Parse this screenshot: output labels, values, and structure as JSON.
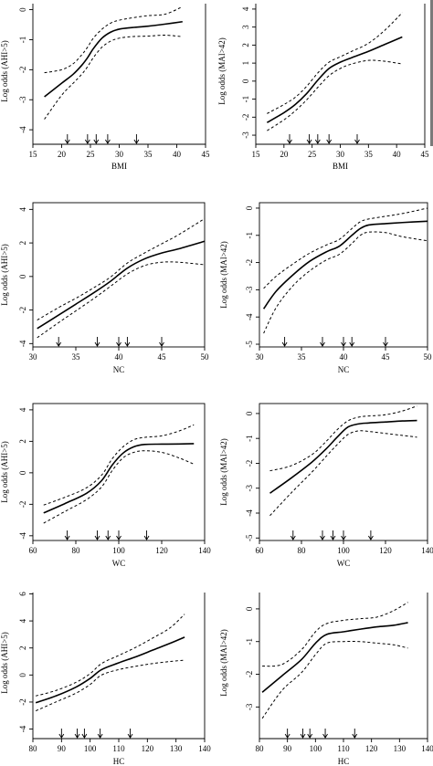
{
  "chart_data": [
    {
      "type": "line",
      "xlabel": "BMI",
      "ylabel": "Log odds (AHI>5)",
      "xlim": [
        15,
        45
      ],
      "ylim": [
        -4.3,
        0.2
      ],
      "xticks": [
        "15",
        "20",
        "25",
        "30",
        "35",
        "40",
        "45"
      ],
      "yticks": [
        "-4",
        "-3",
        "-2",
        "-1",
        "0"
      ],
      "frame": "open-top",
      "knots": [
        21,
        24.5,
        26,
        28,
        33
      ],
      "series": [
        {
          "role": "fit",
          "x": [
            17,
            20,
            22,
            23.5,
            24.5,
            25.5,
            27,
            28.5,
            30,
            32,
            35,
            38,
            41
          ],
          "y": [
            -2.9,
            -2.45,
            -2.15,
            -1.85,
            -1.6,
            -1.3,
            -0.95,
            -0.75,
            -0.65,
            -0.6,
            -0.55,
            -0.48,
            -0.4
          ]
        },
        {
          "role": "upper",
          "x": [
            17,
            20,
            22,
            23.5,
            24.5,
            25.5,
            27,
            28.5,
            30,
            32,
            35,
            38,
            41
          ],
          "y": [
            -2.1,
            -2.0,
            -1.8,
            -1.5,
            -1.25,
            -0.95,
            -0.65,
            -0.45,
            -0.35,
            -0.28,
            -0.2,
            -0.15,
            0.1
          ]
        },
        {
          "role": "lower",
          "x": [
            17,
            20,
            22,
            23.5,
            24.5,
            25.5,
            27,
            28.5,
            30,
            32,
            35,
            38,
            41
          ],
          "y": [
            -3.65,
            -2.85,
            -2.45,
            -2.15,
            -1.9,
            -1.6,
            -1.25,
            -1.05,
            -0.95,
            -0.9,
            -0.88,
            -0.85,
            -0.9
          ]
        }
      ]
    },
    {
      "type": "line",
      "xlabel": "BMI",
      "ylabel": "Log odds (MAI>42)",
      "xlim": [
        15,
        45
      ],
      "ylim": [
        -3.2,
        4.3
      ],
      "xticks": [
        "15",
        "20",
        "25",
        "30",
        "35",
        "40",
        "45"
      ],
      "yticks": [
        "-3",
        "-2",
        "-1",
        "0",
        "1",
        "2",
        "3",
        "4"
      ],
      "frame": "open-top",
      "knots": [
        21,
        24.5,
        26,
        28,
        33
      ],
      "series": [
        {
          "role": "fit",
          "x": [
            17,
            20,
            22,
            24,
            26,
            28,
            30,
            32,
            35,
            38,
            41
          ],
          "y": [
            -2.3,
            -1.75,
            -1.3,
            -0.7,
            0.05,
            0.7,
            1.05,
            1.3,
            1.65,
            2.05,
            2.45
          ]
        },
        {
          "role": "upper",
          "x": [
            17,
            20,
            22,
            24,
            26,
            28,
            30,
            32,
            35,
            38,
            41
          ],
          "y": [
            -1.8,
            -1.3,
            -0.9,
            -0.3,
            0.45,
            1.05,
            1.35,
            1.65,
            2.1,
            2.85,
            3.8
          ]
        },
        {
          "role": "lower",
          "x": [
            17,
            20,
            22,
            24,
            26,
            28,
            30,
            32,
            35,
            38,
            41
          ],
          "y": [
            -2.75,
            -2.15,
            -1.65,
            -1.05,
            -0.35,
            0.3,
            0.7,
            0.95,
            1.15,
            1.1,
            0.95
          ]
        }
      ]
    },
    {
      "type": "line",
      "xlabel": "NC",
      "ylabel": "Log odds (AHI>5)",
      "xlim": [
        30,
        50
      ],
      "ylim": [
        -4.2,
        4.4
      ],
      "xticks": [
        "30",
        "35",
        "40",
        "45",
        "50"
      ],
      "yticks": [
        "-4",
        "-2",
        "0",
        "2",
        "4"
      ],
      "frame": "box",
      "knots": [
        33,
        37.5,
        40,
        41,
        45
      ],
      "series": [
        {
          "role": "fit",
          "x": [
            30.5,
            33,
            35,
            37,
            39,
            41,
            43,
            45,
            47,
            50
          ],
          "y": [
            -3.1,
            -2.3,
            -1.65,
            -1.0,
            -0.3,
            0.5,
            1.05,
            1.4,
            1.65,
            2.1
          ]
        },
        {
          "role": "upper",
          "x": [
            30.5,
            33,
            35,
            37,
            39,
            41,
            43,
            45,
            47,
            50
          ],
          "y": [
            -2.6,
            -1.85,
            -1.3,
            -0.7,
            -0.05,
            0.8,
            1.4,
            1.95,
            2.5,
            3.45
          ]
        },
        {
          "role": "lower",
          "x": [
            30.5,
            33,
            35,
            37,
            39,
            41,
            43,
            45,
            47,
            50
          ],
          "y": [
            -3.65,
            -2.75,
            -2.05,
            -1.35,
            -0.6,
            0.15,
            0.65,
            0.85,
            0.85,
            0.7
          ]
        }
      ]
    },
    {
      "type": "line",
      "xlabel": "NC",
      "ylabel": "Log odds (MAI>42)",
      "xlim": [
        30,
        50
      ],
      "ylim": [
        -5.1,
        0.2
      ],
      "xticks": [
        "30",
        "35",
        "40",
        "45",
        "50"
      ],
      "yticks": [
        "-5",
        "-4",
        "-3",
        "-2",
        "-1",
        "0"
      ],
      "frame": "box",
      "knots": [
        33,
        37.5,
        40,
        41,
        45
      ],
      "series": [
        {
          "role": "fit",
          "x": [
            30.5,
            32,
            34,
            36,
            38,
            39.5,
            41,
            42,
            43,
            45,
            47,
            50
          ],
          "y": [
            -3.7,
            -3.05,
            -2.45,
            -1.95,
            -1.6,
            -1.4,
            -1.0,
            -0.75,
            -0.62,
            -0.57,
            -0.53,
            -0.48
          ]
        },
        {
          "role": "upper",
          "x": [
            30.5,
            32,
            34,
            36,
            38,
            39.5,
            41,
            42,
            43,
            45,
            47,
            50
          ],
          "y": [
            -2.95,
            -2.5,
            -2.05,
            -1.65,
            -1.35,
            -1.15,
            -0.75,
            -0.5,
            -0.4,
            -0.3,
            -0.2,
            0.0
          ]
        },
        {
          "role": "lower",
          "x": [
            30.5,
            32,
            34,
            36,
            38,
            39.5,
            41,
            42,
            43,
            45,
            47,
            50
          ],
          "y": [
            -4.6,
            -3.65,
            -2.85,
            -2.3,
            -1.9,
            -1.7,
            -1.3,
            -1.0,
            -0.88,
            -0.9,
            -1.05,
            -1.2
          ]
        }
      ]
    },
    {
      "type": "line",
      "xlabel": "WC",
      "ylabel": "Log odds (AHI>5)",
      "xlim": [
        60,
        140
      ],
      "ylim": [
        -4.3,
        4.4
      ],
      "xticks": [
        "60",
        "80",
        "100",
        "120",
        "140"
      ],
      "yticks": [
        "-4",
        "-2",
        "0",
        "2",
        "4"
      ],
      "frame": "box",
      "knots": [
        76,
        90,
        95,
        100,
        113
      ],
      "series": [
        {
          "role": "fit",
          "x": [
            65,
            75,
            85,
            92,
            97,
            102,
            107,
            112,
            120,
            128,
            135
          ],
          "y": [
            -2.55,
            -1.95,
            -1.3,
            -0.5,
            0.5,
            1.25,
            1.65,
            1.8,
            1.82,
            1.83,
            1.85
          ]
        },
        {
          "role": "upper",
          "x": [
            65,
            75,
            85,
            92,
            97,
            102,
            107,
            112,
            120,
            128,
            135
          ],
          "y": [
            -2.05,
            -1.55,
            -0.95,
            -0.15,
            0.9,
            1.65,
            2.1,
            2.25,
            2.35,
            2.65,
            3.05
          ]
        },
        {
          "role": "lower",
          "x": [
            65,
            75,
            85,
            92,
            97,
            102,
            107,
            112,
            120,
            128,
            135
          ],
          "y": [
            -3.2,
            -2.45,
            -1.7,
            -0.9,
            0.15,
            0.95,
            1.3,
            1.4,
            1.3,
            0.95,
            0.55
          ]
        }
      ]
    },
    {
      "type": "line",
      "xlabel": "WC",
      "ylabel": "Log odds (MAI>42)",
      "xlim": [
        60,
        140
      ],
      "ylim": [
        -5.1,
        0.4
      ],
      "xticks": [
        "60",
        "80",
        "100",
        "120",
        "140"
      ],
      "yticks": [
        "-5",
        "-4",
        "-3",
        "-2",
        "-1",
        "0"
      ],
      "frame": "box",
      "knots": [
        76,
        90,
        95,
        100,
        113
      ],
      "series": [
        {
          "role": "fit",
          "x": [
            65,
            75,
            85,
            92,
            97,
            102,
            107,
            112,
            120,
            128,
            135
          ],
          "y": [
            -3.2,
            -2.6,
            -1.95,
            -1.4,
            -0.95,
            -0.55,
            -0.42,
            -0.38,
            -0.34,
            -0.3,
            -0.28
          ]
        },
        {
          "role": "upper",
          "x": [
            65,
            75,
            85,
            92,
            97,
            102,
            107,
            112,
            120,
            128,
            135
          ],
          "y": [
            -2.3,
            -2.1,
            -1.65,
            -1.1,
            -0.65,
            -0.3,
            -0.15,
            -0.1,
            -0.05,
            0.1,
            0.3
          ]
        },
        {
          "role": "lower",
          "x": [
            65,
            75,
            85,
            92,
            97,
            102,
            107,
            112,
            120,
            128,
            135
          ],
          "y": [
            -4.1,
            -3.2,
            -2.35,
            -1.7,
            -1.25,
            -0.85,
            -0.7,
            -0.72,
            -0.8,
            -0.88,
            -0.95
          ]
        }
      ]
    },
    {
      "type": "line",
      "xlabel": "HC",
      "ylabel": "Log odds (AHI>5)",
      "xlim": [
        80,
        140
      ],
      "ylim": [
        -4.3,
        6.1
      ],
      "xticks": [
        "80",
        "90",
        "100",
        "110",
        "120",
        "130",
        "140"
      ],
      "yticks": [
        "-4",
        "-2",
        "0",
        "2",
        "4",
        "6"
      ],
      "frame": "open-top",
      "knots": [
        90,
        95.5,
        98,
        103.5,
        114
      ],
      "series": [
        {
          "role": "fit",
          "x": [
            81,
            88,
            95,
            100,
            104,
            110,
            116,
            122,
            128,
            133
          ],
          "y": [
            -2.05,
            -1.55,
            -0.9,
            -0.25,
            0.4,
            0.9,
            1.35,
            1.85,
            2.35,
            2.8
          ]
        },
        {
          "role": "upper",
          "x": [
            81,
            88,
            95,
            100,
            104,
            110,
            116,
            122,
            128,
            133
          ],
          "y": [
            -1.55,
            -1.15,
            -0.55,
            0.1,
            0.85,
            1.45,
            2.05,
            2.75,
            3.5,
            4.5
          ]
        },
        {
          "role": "lower",
          "x": [
            81,
            88,
            95,
            100,
            104,
            110,
            116,
            122,
            128,
            133
          ],
          "y": [
            -2.65,
            -2.0,
            -1.35,
            -0.7,
            0.0,
            0.4,
            0.65,
            0.85,
            1.0,
            1.1
          ]
        }
      ]
    },
    {
      "type": "line",
      "xlabel": "HC",
      "ylabel": "Log odds (MAI>42)",
      "xlim": [
        80,
        140
      ],
      "ylim": [
        -3.8,
        0.5
      ],
      "xticks": [
        "80",
        "90",
        "100",
        "110",
        "120",
        "130",
        "140"
      ],
      "yticks": [
        "-3",
        "-2",
        "-1",
        "0"
      ],
      "frame": "open-top",
      "knots": [
        90,
        95.5,
        98,
        103.5,
        114
      ],
      "series": [
        {
          "role": "fit",
          "x": [
            81,
            88,
            95,
            100,
            104,
            110,
            116,
            122,
            128,
            133
          ],
          "y": [
            -2.55,
            -2.05,
            -1.55,
            -1.05,
            -0.78,
            -0.7,
            -0.62,
            -0.55,
            -0.5,
            -0.42
          ]
        },
        {
          "role": "upper",
          "x": [
            81,
            88,
            95,
            100,
            104,
            110,
            116,
            122,
            128,
            133
          ],
          "y": [
            -1.75,
            -1.7,
            -1.25,
            -0.7,
            -0.45,
            -0.35,
            -0.3,
            -0.25,
            -0.05,
            0.2
          ]
        },
        {
          "role": "lower",
          "x": [
            81,
            88,
            95,
            100,
            104,
            110,
            116,
            122,
            128,
            133
          ],
          "y": [
            -3.35,
            -2.5,
            -1.95,
            -1.4,
            -1.05,
            -1.0,
            -1.0,
            -1.05,
            -1.1,
            -1.2
          ]
        }
      ]
    }
  ]
}
